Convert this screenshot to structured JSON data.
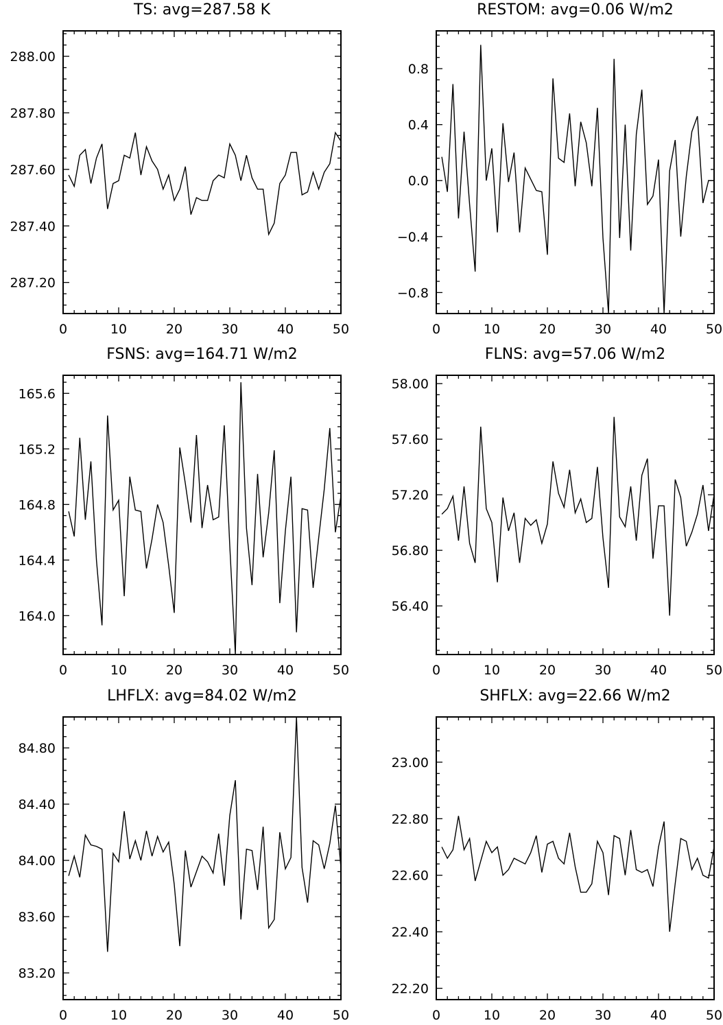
{
  "chart_data": [
    {
      "type": "line",
      "title": "TS: avg=287.58 K",
      "xlabel": "",
      "ylabel": "",
      "xlim": [
        0,
        50
      ],
      "ylim": [
        287.09,
        288.09
      ],
      "xticks": [
        0,
        10,
        20,
        30,
        40,
        50
      ],
      "xtick_labels": [
        "0",
        "10",
        "20",
        "30",
        "40",
        "50"
      ],
      "yticks": [
        287.2,
        287.4,
        287.6,
        287.8,
        288.0
      ],
      "ytick_labels": [
        "287.20",
        "287.40",
        "287.60",
        "287.80",
        "288.00"
      ],
      "grid": false,
      "series": [
        {
          "x": [
            1,
            2,
            3,
            4,
            5,
            6,
            7,
            8,
            9,
            10,
            11,
            12,
            13,
            14,
            15,
            16,
            17,
            18,
            19,
            20,
            21,
            22,
            23,
            24,
            25,
            26,
            27,
            28,
            29,
            30,
            31,
            32,
            33,
            34,
            35,
            36,
            37,
            38,
            39,
            40,
            41,
            42,
            43,
            44,
            45,
            46,
            47,
            48,
            49,
            50
          ],
          "values": [
            287.58,
            287.54,
            287.65,
            287.67,
            287.55,
            287.64,
            287.69,
            287.46,
            287.55,
            287.56,
            287.65,
            287.64,
            287.73,
            287.58,
            287.68,
            287.63,
            287.6,
            287.53,
            287.58,
            287.49,
            287.53,
            287.61,
            287.44,
            287.5,
            287.49,
            287.49,
            287.56,
            287.58,
            287.57,
            287.69,
            287.65,
            287.56,
            287.65,
            287.57,
            287.53,
            287.53,
            287.37,
            287.41,
            287.55,
            287.58,
            287.66,
            287.66,
            287.51,
            287.52,
            287.59,
            287.53,
            287.59,
            287.62,
            287.73,
            287.7
          ]
        }
      ]
    },
    {
      "type": "line",
      "title": "RESTOM: avg=0.06 W/m2",
      "xlabel": "",
      "ylabel": "",
      "xlim": [
        0,
        50
      ],
      "ylim": [
        -0.95,
        1.07
      ],
      "xticks": [
        0,
        10,
        20,
        30,
        40,
        50
      ],
      "xtick_labels": [
        "0",
        "10",
        "20",
        "30",
        "40",
        "50"
      ],
      "yticks": [
        -0.8,
        -0.4,
        0.0,
        0.4,
        0.8
      ],
      "ytick_labels": [
        "−0.8",
        "−0.4",
        "0.0",
        "0.4",
        "0.8"
      ],
      "grid": false,
      "series": [
        {
          "x": [
            1,
            2,
            3,
            4,
            5,
            6,
            7,
            8,
            9,
            10,
            11,
            12,
            13,
            14,
            15,
            16,
            17,
            18,
            19,
            20,
            21,
            22,
            23,
            24,
            25,
            26,
            27,
            28,
            29,
            30,
            31,
            32,
            33,
            34,
            35,
            36,
            37,
            38,
            39,
            40,
            41,
            42,
            43,
            44,
            45,
            46,
            47,
            48,
            49,
            50
          ],
          "values": [
            0.17,
            -0.08,
            0.69,
            -0.27,
            0.35,
            -0.17,
            -0.65,
            0.97,
            0.0,
            0.23,
            -0.37,
            0.41,
            -0.01,
            0.2,
            -0.37,
            0.09,
            0.01,
            -0.07,
            -0.08,
            -0.53,
            0.73,
            0.16,
            0.13,
            0.48,
            -0.04,
            0.42,
            0.27,
            -0.04,
            0.52,
            -0.41,
            -0.95,
            0.87,
            -0.41,
            0.4,
            -0.5,
            0.33,
            0.65,
            -0.17,
            -0.11,
            0.15,
            -0.95,
            0.07,
            0.29,
            -0.4,
            0.03,
            0.35,
            0.46,
            -0.16,
            0.0,
            0.0
          ]
        }
      ]
    },
    {
      "type": "line",
      "title": "FSNS: avg=164.71 W/m2",
      "xlabel": "",
      "ylabel": "",
      "xlim": [
        0,
        50
      ],
      "ylim": [
        163.72,
        165.73
      ],
      "xticks": [
        0,
        10,
        20,
        30,
        40,
        50
      ],
      "xtick_labels": [
        "0",
        "10",
        "20",
        "30",
        "40",
        "50"
      ],
      "yticks": [
        164.0,
        164.4,
        164.8,
        165.2,
        165.6
      ],
      "ytick_labels": [
        "164.0",
        "164.4",
        "164.8",
        "165.2",
        "165.6"
      ],
      "grid": false,
      "series": [
        {
          "x": [
            1,
            2,
            3,
            4,
            5,
            6,
            7,
            8,
            9,
            10,
            11,
            12,
            13,
            14,
            15,
            16,
            17,
            18,
            19,
            20,
            21,
            22,
            23,
            24,
            25,
            26,
            27,
            28,
            29,
            30,
            31,
            32,
            33,
            34,
            35,
            36,
            37,
            38,
            39,
            40,
            41,
            42,
            43,
            44,
            45,
            46,
            47,
            48,
            49,
            50
          ],
          "values": [
            164.75,
            164.57,
            165.28,
            164.69,
            165.11,
            164.4,
            163.93,
            165.44,
            164.76,
            164.83,
            164.14,
            165.0,
            164.76,
            164.75,
            164.34,
            164.55,
            164.8,
            164.67,
            164.36,
            164.02,
            165.21,
            164.95,
            164.67,
            165.3,
            164.63,
            164.94,
            164.69,
            164.71,
            165.37,
            164.5,
            163.72,
            165.68,
            164.63,
            164.22,
            165.02,
            164.42,
            164.74,
            165.19,
            164.09,
            164.61,
            165.0,
            163.88,
            164.77,
            164.76,
            164.2,
            164.56,
            164.91,
            165.35,
            164.6,
            164.86
          ]
        }
      ]
    },
    {
      "type": "line",
      "title": "FLNS: avg=57.06 W/m2",
      "xlabel": "",
      "ylabel": "",
      "xlim": [
        0,
        50
      ],
      "ylim": [
        56.05,
        58.06
      ],
      "xticks": [
        0,
        10,
        20,
        30,
        40,
        50
      ],
      "xtick_labels": [
        "0",
        "10",
        "20",
        "30",
        "40",
        "50"
      ],
      "yticks": [
        56.4,
        56.8,
        57.2,
        57.6,
        58.0
      ],
      "ytick_labels": [
        "56.40",
        "56.80",
        "57.20",
        "57.60",
        "58.00"
      ],
      "grid": false,
      "series": [
        {
          "x": [
            1,
            2,
            3,
            4,
            5,
            6,
            7,
            8,
            9,
            10,
            11,
            12,
            13,
            14,
            15,
            16,
            17,
            18,
            19,
            20,
            21,
            22,
            23,
            24,
            25,
            26,
            27,
            28,
            29,
            30,
            31,
            32,
            33,
            34,
            35,
            36,
            37,
            38,
            39,
            40,
            41,
            42,
            43,
            44,
            45,
            46,
            47,
            48,
            49,
            50
          ],
          "values": [
            57.06,
            57.1,
            57.19,
            56.87,
            57.26,
            56.85,
            56.71,
            57.69,
            57.1,
            57.0,
            56.57,
            57.18,
            56.94,
            57.07,
            56.71,
            57.03,
            56.98,
            57.02,
            56.85,
            56.99,
            57.44,
            57.21,
            57.11,
            57.38,
            57.07,
            57.17,
            57.0,
            57.03,
            57.4,
            56.89,
            56.53,
            57.76,
            57.04,
            56.97,
            57.26,
            56.87,
            57.34,
            57.46,
            56.74,
            57.12,
            57.12,
            56.33,
            57.31,
            57.18,
            56.83,
            56.93,
            57.06,
            57.27,
            56.94,
            57.2
          ]
        }
      ]
    },
    {
      "type": "line",
      "title": "LHFLX: avg=84.02 W/m2",
      "xlabel": "",
      "ylabel": "",
      "xlim": [
        0,
        50
      ],
      "ylim": [
        83.01,
        85.02
      ],
      "xticks": [
        0,
        10,
        20,
        30,
        40,
        50
      ],
      "xtick_labels": [
        "0",
        "10",
        "20",
        "30",
        "40",
        "50"
      ],
      "yticks": [
        83.2,
        83.6,
        84.0,
        84.4,
        84.8
      ],
      "ytick_labels": [
        "83.20",
        "83.60",
        "84.00",
        "84.40",
        "84.80"
      ],
      "grid": false,
      "series": [
        {
          "x": [
            1,
            2,
            3,
            4,
            5,
            6,
            7,
            8,
            9,
            10,
            11,
            12,
            13,
            14,
            15,
            16,
            17,
            18,
            19,
            20,
            21,
            22,
            23,
            24,
            25,
            26,
            27,
            28,
            29,
            30,
            31,
            32,
            33,
            34,
            35,
            36,
            37,
            38,
            39,
            40,
            41,
            42,
            43,
            44,
            45,
            46,
            47,
            48,
            49,
            50
          ],
          "values": [
            83.89,
            84.03,
            83.88,
            84.18,
            84.11,
            84.1,
            84.08,
            83.35,
            84.05,
            83.99,
            84.35,
            84.01,
            84.14,
            84.0,
            84.21,
            84.03,
            84.17,
            84.06,
            84.13,
            83.83,
            83.39,
            84.07,
            83.81,
            83.92,
            84.03,
            83.99,
            83.91,
            84.19,
            83.82,
            84.32,
            84.57,
            83.58,
            84.08,
            84.07,
            83.79,
            84.24,
            83.52,
            83.58,
            84.2,
            83.94,
            84.02,
            85.02,
            83.95,
            83.7,
            84.14,
            84.11,
            83.94,
            84.12,
            84.39,
            83.95
          ]
        }
      ]
    },
    {
      "type": "line",
      "title": "SHFLX: avg=22.66 W/m2",
      "xlabel": "",
      "ylabel": "",
      "xlim": [
        0,
        50
      ],
      "ylim": [
        22.16,
        23.16
      ],
      "xticks": [
        0,
        10,
        20,
        30,
        40,
        50
      ],
      "xtick_labels": [
        "0",
        "10",
        "20",
        "30",
        "40",
        "50"
      ],
      "yticks": [
        22.2,
        22.4,
        22.6,
        22.8,
        23.0
      ],
      "ytick_labels": [
        "22.20",
        "22.40",
        "22.60",
        "22.80",
        "23.00"
      ],
      "grid": false,
      "series": [
        {
          "x": [
            1,
            2,
            3,
            4,
            5,
            6,
            7,
            8,
            9,
            10,
            11,
            12,
            13,
            14,
            15,
            16,
            17,
            18,
            19,
            20,
            21,
            22,
            23,
            24,
            25,
            26,
            27,
            28,
            29,
            30,
            31,
            32,
            33,
            34,
            35,
            36,
            37,
            38,
            39,
            40,
            41,
            42,
            43,
            44,
            45,
            46,
            47,
            48,
            49,
            50
          ],
          "values": [
            22.7,
            22.66,
            22.69,
            22.81,
            22.69,
            22.73,
            22.58,
            22.65,
            22.72,
            22.68,
            22.7,
            22.6,
            22.62,
            22.66,
            22.65,
            22.64,
            22.68,
            22.74,
            22.61,
            22.71,
            22.72,
            22.66,
            22.64,
            22.75,
            22.63,
            22.54,
            22.54,
            22.57,
            22.72,
            22.68,
            22.53,
            22.74,
            22.73,
            22.6,
            22.76,
            22.62,
            22.61,
            22.62,
            22.56,
            22.7,
            22.79,
            22.4,
            22.57,
            22.73,
            22.72,
            22.62,
            22.66,
            22.6,
            22.59,
            22.7
          ]
        }
      ]
    }
  ]
}
